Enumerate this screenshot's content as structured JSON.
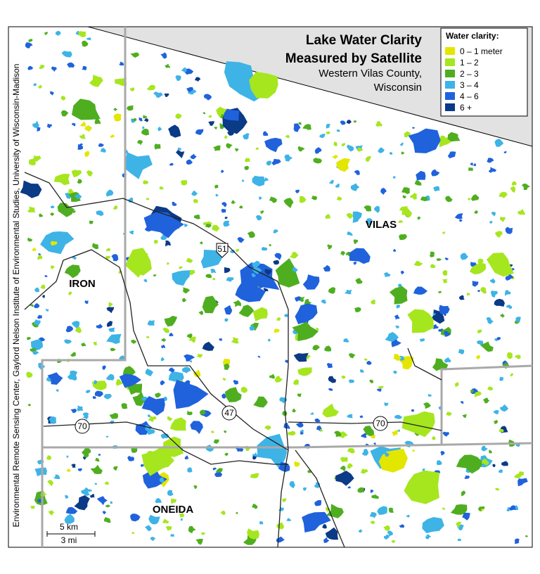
{
  "title": [
    "Lake Water Clarity",
    "Measured by Satellite"
  ],
  "subtitle": [
    "Western Vilas County,",
    "Wisconsin"
  ],
  "legend": {
    "title": "Water clarity:",
    "items": [
      {
        "label": "0 – 1 meter",
        "color": "#e3e600"
      },
      {
        "label": "1 – 2",
        "color": "#a6e61e"
      },
      {
        "label": "2 – 3",
        "color": "#4fae20"
      },
      {
        "label": "3 – 4",
        "color": "#3eb3e6"
      },
      {
        "label": "4 – 6",
        "color": "#1f62dc"
      },
      {
        "label": "6 +",
        "color": "#0b3a86"
      }
    ]
  },
  "places": [
    "IRON",
    "VILAS",
    "ONEIDA"
  ],
  "highways": [
    "51",
    "47",
    "70",
    "70"
  ],
  "scale": [
    "5 km",
    "3 mi"
  ],
  "credit": "Environmental Remote Sensing Center, Gaylord Nelson Institute of Environmental Studies, University of Wisconsin-Madison"
}
